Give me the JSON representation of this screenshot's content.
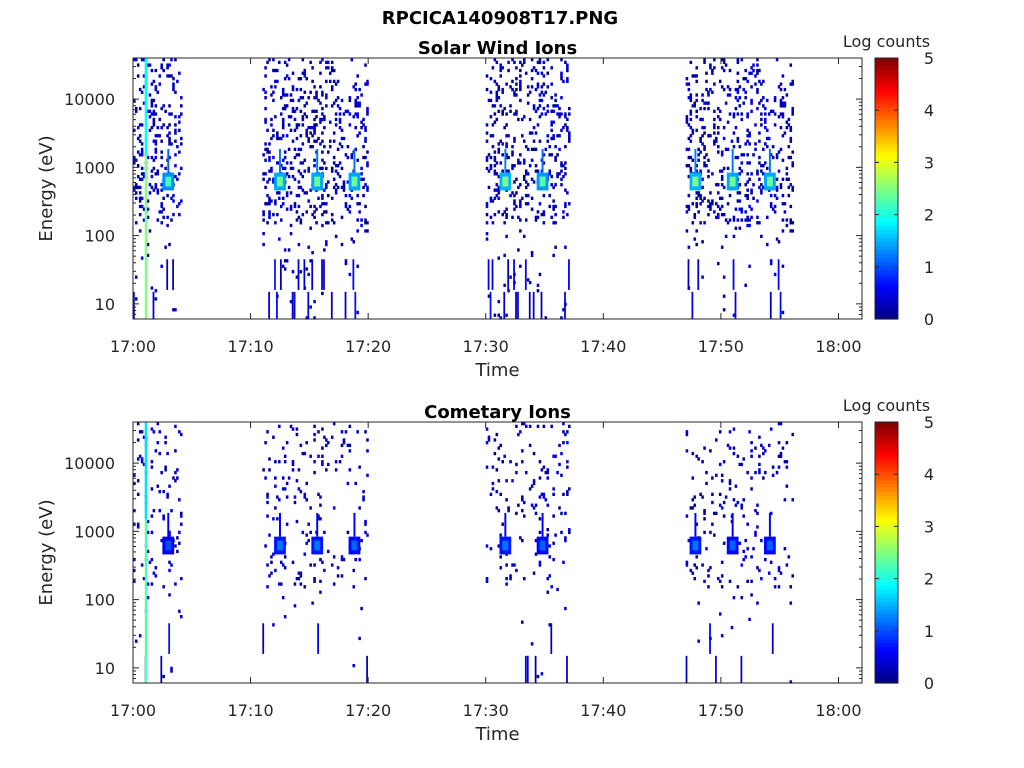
{
  "figure": {
    "title": "RPCICA140908T17.PNG"
  },
  "chart_data": [
    {
      "type": "heatmap",
      "title": "Solar Wind Ions",
      "xlabel": "Time",
      "ylabel": "Energy (eV)",
      "x_ticks": [
        "17:00",
        "17:10",
        "17:20",
        "17:30",
        "17:40",
        "17:50",
        "18:00"
      ],
      "xlim": [
        "17:00",
        "18:02"
      ],
      "y_scale": "log",
      "y_ticks": [
        10,
        100,
        1000,
        10000
      ],
      "ylim": [
        6,
        40000
      ],
      "colorbar": {
        "label": "Log counts",
        "ticks": [
          0,
          1,
          2,
          3,
          4,
          5
        ],
        "range": [
          0,
          5
        ],
        "colormap": "jet"
      },
      "grid": false,
      "legend": "none",
      "bursts": [
        {
          "start": "17:00",
          "end": "17:04",
          "peak": "17:03",
          "peak_energy_eV": 620,
          "peak_log_counts": 2.2
        },
        {
          "start": "17:11",
          "end": "17:20",
          "peak": "17:12:30",
          "peak_energy_eV": 620,
          "peak_log_counts": 2.4
        },
        {
          "start": "17:11",
          "end": "17:20",
          "peak": "17:15:40",
          "peak_energy_eV": 620,
          "peak_log_counts": 2.4
        },
        {
          "start": "17:11",
          "end": "17:20",
          "peak": "17:18:50",
          "peak_energy_eV": 620,
          "peak_log_counts": 2.4
        },
        {
          "start": "17:30",
          "end": "17:37",
          "peak": "17:31:40",
          "peak_energy_eV": 620,
          "peak_log_counts": 2.5
        },
        {
          "start": "17:30",
          "end": "17:37",
          "peak": "17:34:50",
          "peak_energy_eV": 620,
          "peak_log_counts": 2.3
        },
        {
          "start": "17:47",
          "end": "17:56",
          "peak": "17:47:50",
          "peak_energy_eV": 620,
          "peak_log_counts": 2.5
        },
        {
          "start": "17:47",
          "end": "17:56",
          "peak": "17:51:00",
          "peak_energy_eV": 620,
          "peak_log_counts": 2.4
        },
        {
          "start": "17:47",
          "end": "17:56",
          "peak": "17:54:10",
          "peak_energy_eV": 620,
          "peak_log_counts": 2.4
        }
      ],
      "vertical_streak": {
        "time": "17:01",
        "from_eV": 6,
        "to_eV": 40000,
        "log_counts": 2.5
      }
    },
    {
      "type": "heatmap",
      "title": "Cometary Ions",
      "xlabel": "Time",
      "ylabel": "Energy (eV)",
      "x_ticks": [
        "17:00",
        "17:10",
        "17:20",
        "17:30",
        "17:40",
        "17:50",
        "18:00"
      ],
      "xlim": [
        "17:00",
        "18:02"
      ],
      "y_scale": "log",
      "y_ticks": [
        10,
        100,
        1000,
        10000
      ],
      "ylim": [
        6,
        40000
      ],
      "colorbar": {
        "label": "Log counts",
        "ticks": [
          0,
          1,
          2,
          3,
          4,
          5
        ],
        "range": [
          0,
          5
        ],
        "colormap": "jet"
      },
      "grid": false,
      "legend": "none",
      "bursts": [
        {
          "start": "17:00",
          "end": "17:04",
          "peak": "17:03",
          "peak_energy_eV": 620,
          "peak_log_counts": 1.0
        },
        {
          "start": "17:11",
          "end": "17:20",
          "peak": "17:12:30",
          "peak_energy_eV": 620,
          "peak_log_counts": 1.2
        },
        {
          "start": "17:11",
          "end": "17:20",
          "peak": "17:15:40",
          "peak_energy_eV": 620,
          "peak_log_counts": 1.2
        },
        {
          "start": "17:11",
          "end": "17:20",
          "peak": "17:18:50",
          "peak_energy_eV": 620,
          "peak_log_counts": 1.1
        },
        {
          "start": "17:30",
          "end": "17:37",
          "peak": "17:31:40",
          "peak_energy_eV": 620,
          "peak_log_counts": 1.2
        },
        {
          "start": "17:30",
          "end": "17:37",
          "peak": "17:34:50",
          "peak_energy_eV": 620,
          "peak_log_counts": 1.1
        },
        {
          "start": "17:47",
          "end": "17:56",
          "peak": "17:47:50",
          "peak_energy_eV": 620,
          "peak_log_counts": 1.2
        },
        {
          "start": "17:47",
          "end": "17:56",
          "peak": "17:51:00",
          "peak_energy_eV": 620,
          "peak_log_counts": 1.1
        },
        {
          "start": "17:47",
          "end": "17:56",
          "peak": "17:54:10",
          "peak_energy_eV": 620,
          "peak_log_counts": 1.1
        }
      ],
      "vertical_streak": {
        "time": "17:01",
        "from_eV": 6,
        "to_eV": 40000,
        "log_counts": 2.3
      }
    }
  ]
}
